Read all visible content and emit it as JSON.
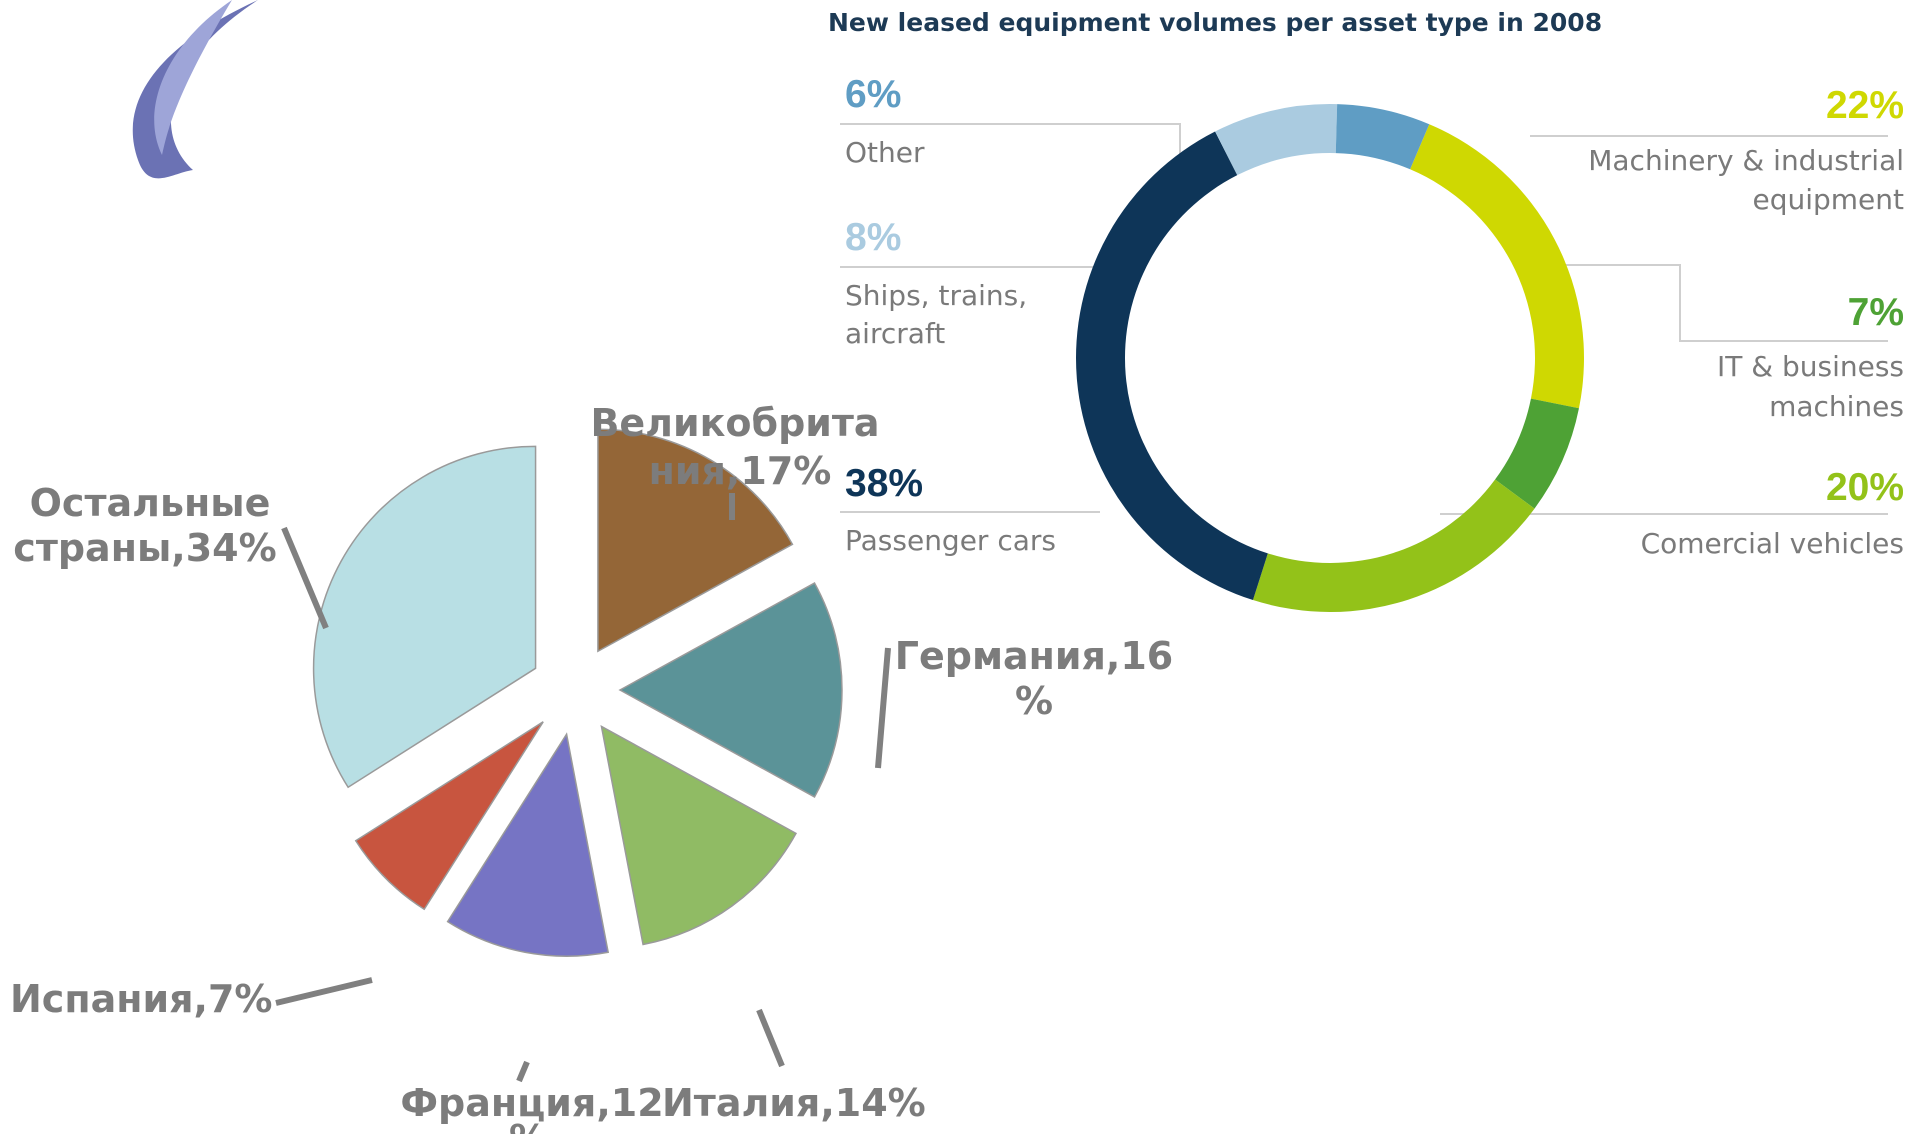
{
  "donut": {
    "title": "New leased equipment volumes per asset type in 2008",
    "colors": {
      "other": "#5f9dc4",
      "ships": "#aacbe0",
      "machinery": "#cfd802",
      "it": "#4ea235",
      "commercial": "#93c219",
      "passenger": "#0e3558"
    },
    "labels": {
      "other_pct": "6%",
      "other_l1": "Other",
      "ships_pct": "8%",
      "ships_l1": "Ships, trains,",
      "ships_l2": "aircraft",
      "passenger_pct": "38%",
      "passenger_l1": "Passenger cars",
      "machinery_pct": "22%",
      "machinery_l1": "Machinery & industrial",
      "machinery_l2": "equipment",
      "it_pct": "7%",
      "it_l1": "IT & business",
      "it_l2": "machines",
      "commercial_pct": "20%",
      "commercial_l1": "Comercial vehicles"
    }
  },
  "pie": {
    "colors": {
      "uk": "#946637",
      "germany": "#5b9398",
      "italy": "#90bb64",
      "france": "#7674c4",
      "spain": "#c8553f",
      "other": "#b8dfe4"
    },
    "labels": {
      "uk_l1": "Великобрита",
      "uk_l2": "ния,17%",
      "germany_l1": "Германия,16",
      "germany_l2": "%",
      "italy_l1": "Италия,14%",
      "france_l1": "Франция,12",
      "france_l2": "%",
      "spain_l1": "Испания,7%",
      "other_l1": "Остальные",
      "other_l2": "страны,34%"
    }
  },
  "chart_data": [
    {
      "type": "pie",
      "variant": "donut",
      "title": "New leased equipment volumes per asset type in 2008",
      "categories": [
        "Machinery & industrial equipment",
        "IT & business machines",
        "Comercial vehicles",
        "Passenger cars",
        "Ships, trains, aircraft",
        "Other"
      ],
      "values": [
        22,
        7,
        20,
        38,
        8,
        6
      ],
      "unit": "%"
    },
    {
      "type": "pie",
      "variant": "exploded",
      "categories": [
        "Великобритания",
        "Германия",
        "Италия",
        "Франция",
        "Испания",
        "Остальные страны"
      ],
      "values": [
        17,
        16,
        14,
        12,
        7,
        34
      ],
      "unit": "%"
    }
  ]
}
